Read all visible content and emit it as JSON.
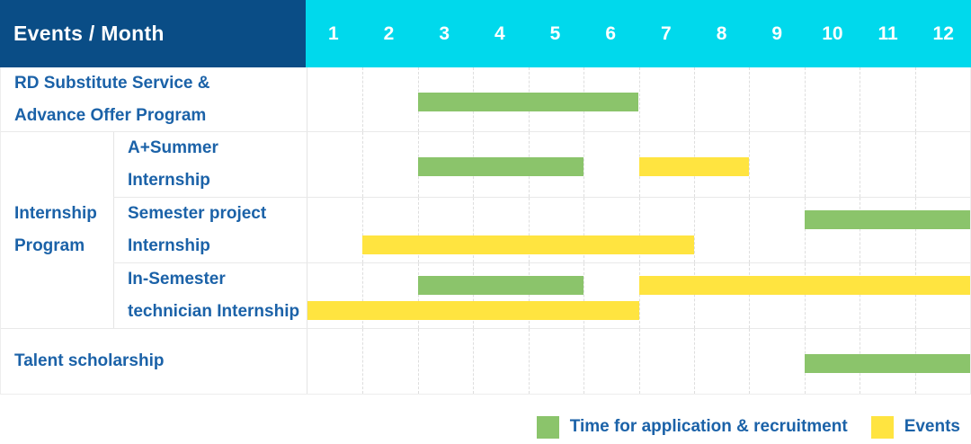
{
  "title_cell": "Events / Month",
  "colors": {
    "header_bg": "#0a4d86",
    "month_header_bg": "#00d9ec",
    "label_text": "#1b62a8",
    "application_green": "#8bc46b",
    "event_yellow": "#ffe440"
  },
  "legend": {
    "items": [
      {
        "type": "application",
        "label": "Time for application & recruitment"
      },
      {
        "type": "event",
        "label": "Events"
      }
    ]
  },
  "chart_data": {
    "type": "gantt",
    "title": "Events / Month",
    "x_unit": "month",
    "months": [
      "1",
      "2",
      "3",
      "4",
      "5",
      "6",
      "7",
      "8",
      "9",
      "10",
      "11",
      "12"
    ],
    "x_range": [
      1,
      12
    ],
    "bar_types": {
      "application": {
        "label": "Time for application & recruitment",
        "color": "#8bc46b"
      },
      "event": {
        "label": "Events",
        "color": "#ffe440"
      }
    },
    "groups": [
      {
        "rows": [
          {
            "label_lines": [
              "RD Substitute Service &",
              "Advance Offer Program"
            ],
            "lines": [
              [
                {
                  "type": "application",
                  "start_month": 3,
                  "end_month": 6
                }
              ]
            ]
          }
        ]
      },
      {
        "group_label_lines": [
          "Internship",
          "Program"
        ],
        "rows": [
          {
            "label_lines": [
              "A+Summer",
              "Internship"
            ],
            "lines": [
              [
                {
                  "type": "application",
                  "start_month": 3,
                  "end_month": 5
                },
                {
                  "type": "event",
                  "start_month": 7,
                  "end_month": 8
                }
              ]
            ]
          },
          {
            "label_lines": [
              "Semester project",
              "Internship"
            ],
            "lines": [
              [
                {
                  "type": "application",
                  "start_month": 10,
                  "end_month": 12
                }
              ],
              [
                {
                  "type": "event",
                  "start_month": 2,
                  "end_month": 7
                }
              ]
            ]
          },
          {
            "label_lines": [
              "In-Semester",
              "technician Internship"
            ],
            "lines": [
              [
                {
                  "type": "application",
                  "start_month": 3,
                  "end_month": 5
                },
                {
                  "type": "event",
                  "start_month": 7,
                  "end_month": 12
                }
              ],
              [
                {
                  "type": "event",
                  "start_month": 1,
                  "end_month": 6
                }
              ]
            ]
          }
        ]
      },
      {
        "rows": [
          {
            "label_lines": [
              "Talent scholarship"
            ],
            "lines": [
              [
                {
                  "type": "application",
                  "start_month": 10,
                  "end_month": 12
                }
              ]
            ]
          }
        ]
      }
    ]
  }
}
